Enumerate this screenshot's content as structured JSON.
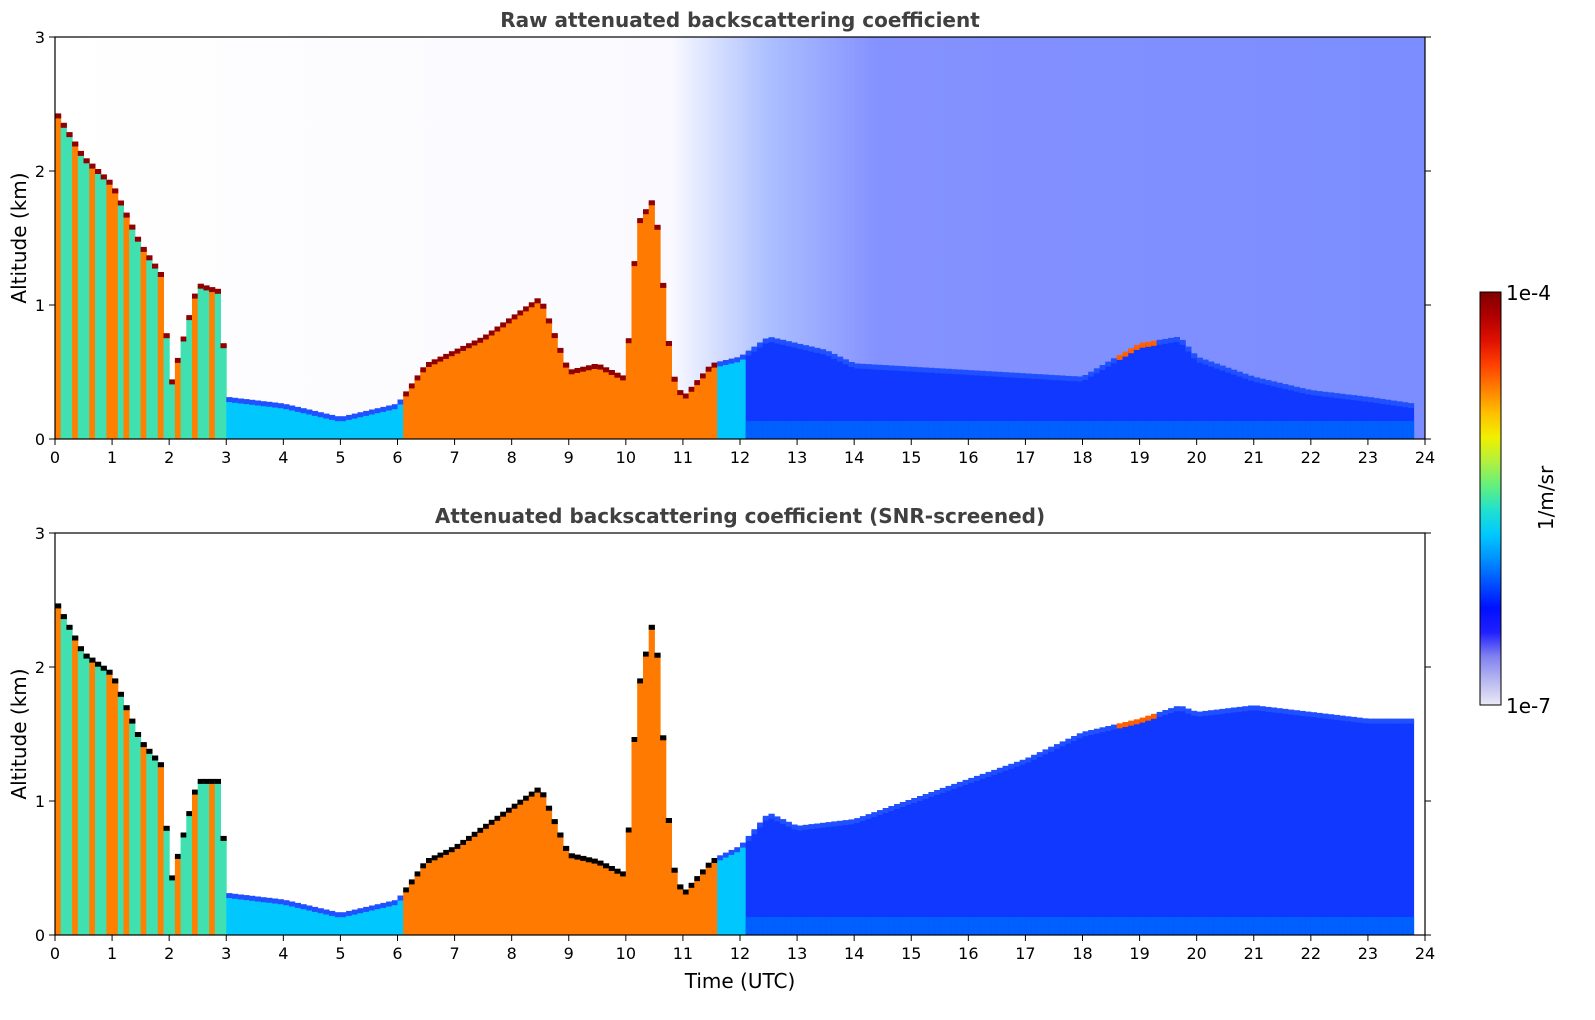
{
  "chart_data": [
    {
      "type": "heatmap",
      "title": "Raw attenuated backscattering coefficient",
      "ylabel": "Altitude (km)",
      "xlabel": "",
      "xlim": [
        0,
        24
      ],
      "ylim": [
        0,
        3
      ],
      "x_ticks": [
        "0",
        "1",
        "2",
        "3",
        "4",
        "5",
        "6",
        "7",
        "8",
        "9",
        "10",
        "11",
        "12",
        "13",
        "14",
        "15",
        "16",
        "17",
        "18",
        "19",
        "20",
        "21",
        "22",
        "23",
        "24"
      ],
      "y_ticks": [
        "0",
        "1",
        "2",
        "3"
      ],
      "layer_top_km": [
        [
          0.0,
          2.45
        ],
        [
          0.5,
          2.1
        ],
        [
          1.0,
          1.9
        ],
        [
          1.5,
          1.45
        ],
        [
          1.9,
          1.2
        ],
        [
          2.0,
          0.35
        ],
        [
          2.5,
          1.15
        ],
        [
          2.9,
          1.1
        ],
        [
          3.0,
          0.3
        ],
        [
          4.0,
          0.25
        ],
        [
          5.0,
          0.15
        ],
        [
          5.5,
          0.2
        ],
        [
          6.0,
          0.25
        ],
        [
          6.5,
          0.55
        ],
        [
          7.0,
          0.65
        ],
        [
          7.5,
          0.75
        ],
        [
          8.0,
          0.9
        ],
        [
          8.5,
          1.05
        ],
        [
          9.0,
          0.5
        ],
        [
          9.5,
          0.55
        ],
        [
          10.0,
          0.45
        ],
        [
          10.2,
          1.6
        ],
        [
          10.5,
          1.8
        ],
        [
          10.8,
          0.5
        ],
        [
          11.0,
          0.3
        ],
        [
          11.5,
          0.55
        ],
        [
          12.0,
          0.6
        ],
        [
          12.5,
          0.75
        ],
        [
          13.0,
          0.7
        ],
        [
          13.5,
          0.65
        ],
        [
          14.0,
          0.55
        ],
        [
          16.0,
          0.5
        ],
        [
          18.0,
          0.45
        ],
        [
          19.0,
          0.7
        ],
        [
          19.7,
          0.75
        ],
        [
          20.0,
          0.6
        ],
        [
          21.0,
          0.45
        ],
        [
          22.0,
          0.35
        ],
        [
          23.0,
          0.3
        ],
        [
          23.8,
          0.25
        ]
      ]
    },
    {
      "type": "heatmap",
      "title": "Attenuated backscattering coefficient (SNR-screened)",
      "ylabel": "Altitude (km)",
      "xlabel": "Time (UTC)",
      "xlim": [
        0,
        24
      ],
      "ylim": [
        0,
        3
      ],
      "x_ticks": [
        "0",
        "1",
        "2",
        "3",
        "4",
        "5",
        "6",
        "7",
        "8",
        "9",
        "10",
        "11",
        "12",
        "13",
        "14",
        "15",
        "16",
        "17",
        "18",
        "19",
        "20",
        "21",
        "22",
        "23",
        "24"
      ],
      "y_ticks": [
        "0",
        "1",
        "2",
        "3"
      ],
      "layer_top_km": [
        [
          0.0,
          2.5
        ],
        [
          0.5,
          2.1
        ],
        [
          1.0,
          1.95
        ],
        [
          1.5,
          1.45
        ],
        [
          1.9,
          1.25
        ],
        [
          2.0,
          0.35
        ],
        [
          2.5,
          1.15
        ],
        [
          2.9,
          1.15
        ],
        [
          3.0,
          0.3
        ],
        [
          4.0,
          0.25
        ],
        [
          5.0,
          0.15
        ],
        [
          5.5,
          0.2
        ],
        [
          6.0,
          0.25
        ],
        [
          6.5,
          0.55
        ],
        [
          7.0,
          0.65
        ],
        [
          7.5,
          0.8
        ],
        [
          8.0,
          0.95
        ],
        [
          8.5,
          1.1
        ],
        [
          9.0,
          0.6
        ],
        [
          9.5,
          0.55
        ],
        [
          10.0,
          0.45
        ],
        [
          10.2,
          1.8
        ],
        [
          10.5,
          2.4
        ],
        [
          10.8,
          0.55
        ],
        [
          11.0,
          0.3
        ],
        [
          11.5,
          0.55
        ],
        [
          12.0,
          0.65
        ],
        [
          12.5,
          0.9
        ],
        [
          13.0,
          0.8
        ],
        [
          14.0,
          0.85
        ],
        [
          15.0,
          1.0
        ],
        [
          16.0,
          1.15
        ],
        [
          17.0,
          1.3
        ],
        [
          18.0,
          1.5
        ],
        [
          19.0,
          1.6
        ],
        [
          19.7,
          1.7
        ],
        [
          20.0,
          1.65
        ],
        [
          21.0,
          1.7
        ],
        [
          22.0,
          1.65
        ],
        [
          23.0,
          1.6
        ],
        [
          23.8,
          1.6
        ]
      ]
    }
  ],
  "colorbar": {
    "label": "1/m/sr",
    "max_label": "1e-4",
    "min_label": "1e-7",
    "colors": [
      "#eaeaf6",
      "#b8b8f0",
      "#8080f0",
      "#2020ff",
      "#0010ff",
      "#0050ff",
      "#0090ff",
      "#00c8ff",
      "#20e0d0",
      "#60f080",
      "#b0f040",
      "#f0f000",
      "#ffc000",
      "#ff8000",
      "#ff4000",
      "#e01000",
      "#b00000",
      "#800000"
    ]
  }
}
